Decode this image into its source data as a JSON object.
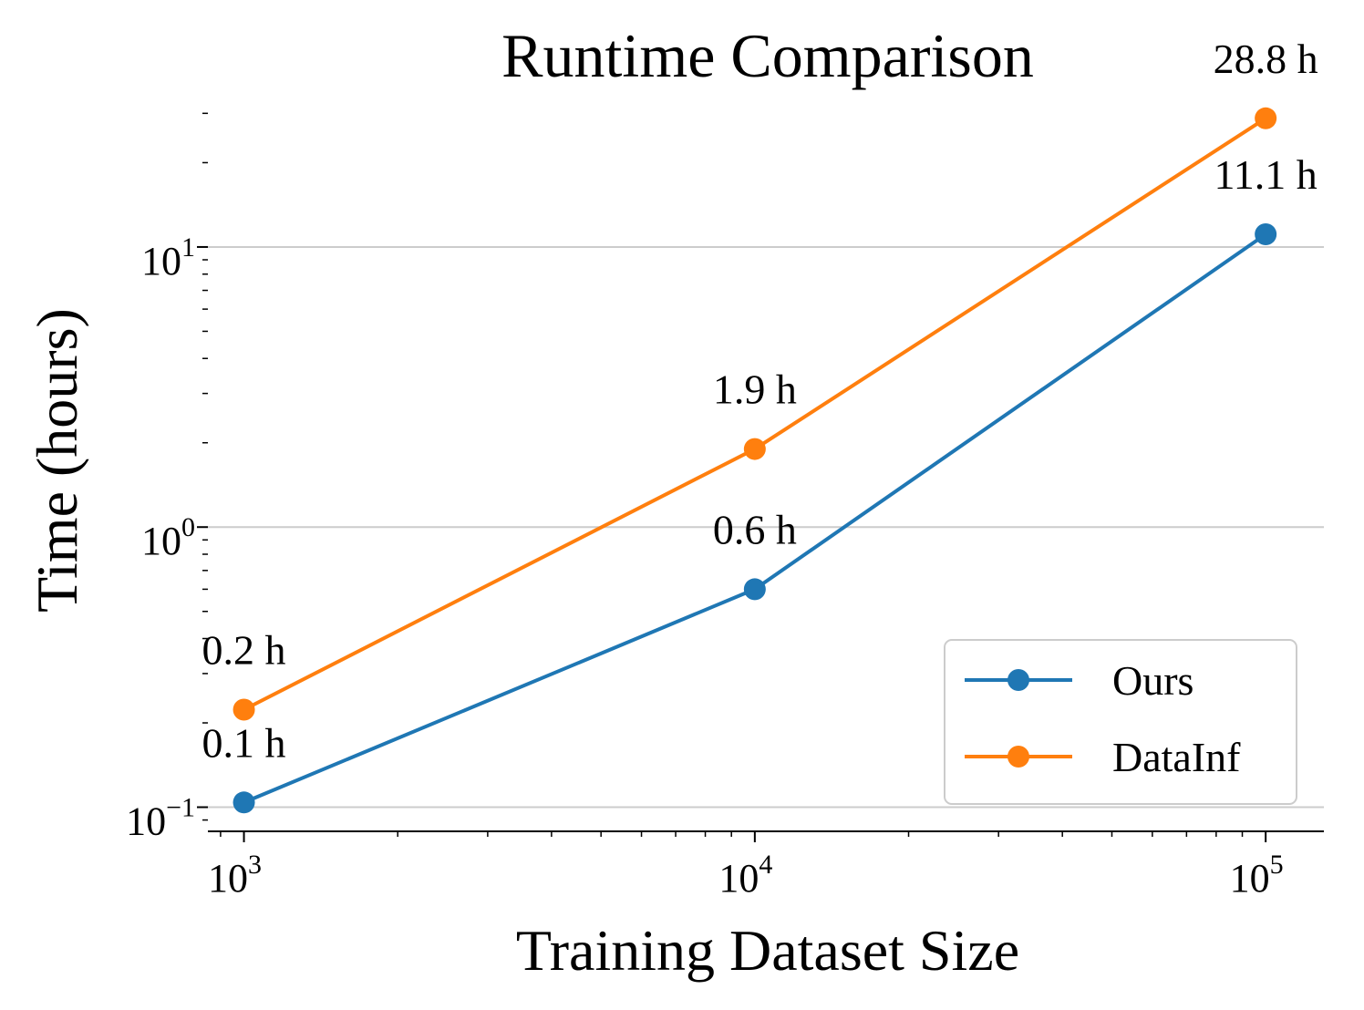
{
  "chart_data": {
    "type": "line",
    "title": "Runtime Comparison",
    "xlabel": "Training Dataset Size",
    "ylabel": "Time (hours)",
    "x_scale": "log",
    "y_scale": "log",
    "xlim": [
      850,
      130000
    ],
    "ylim": [
      0.082,
      36
    ],
    "x_ticks": [
      {
        "value": 1000,
        "base": "10",
        "exp": "3"
      },
      {
        "value": 10000,
        "base": "10",
        "exp": "4"
      },
      {
        "value": 100000,
        "base": "10",
        "exp": "5"
      }
    ],
    "y_ticks": [
      {
        "value": 0.1,
        "base": "10",
        "exp": "−1"
      },
      {
        "value": 1,
        "base": "10",
        "exp": "0"
      },
      {
        "value": 10,
        "base": "10",
        "exp": "1"
      }
    ],
    "grid": "y-major",
    "legend_position": "lower-right",
    "series": [
      {
        "name": "Ours",
        "color": "#1f77b4",
        "x": [
          1000,
          10000,
          100000
        ],
        "y": [
          0.104,
          0.6,
          11.1
        ],
        "labels": [
          "0.1 h",
          "0.6 h",
          "11.1 h"
        ]
      },
      {
        "name": "DataInf",
        "color": "#ff7f0e",
        "x": [
          1000,
          10000,
          100000
        ],
        "y": [
          0.223,
          1.9,
          28.8
        ],
        "labels": [
          "0.2 h",
          "1.9 h",
          "28.8 h"
        ]
      }
    ]
  }
}
